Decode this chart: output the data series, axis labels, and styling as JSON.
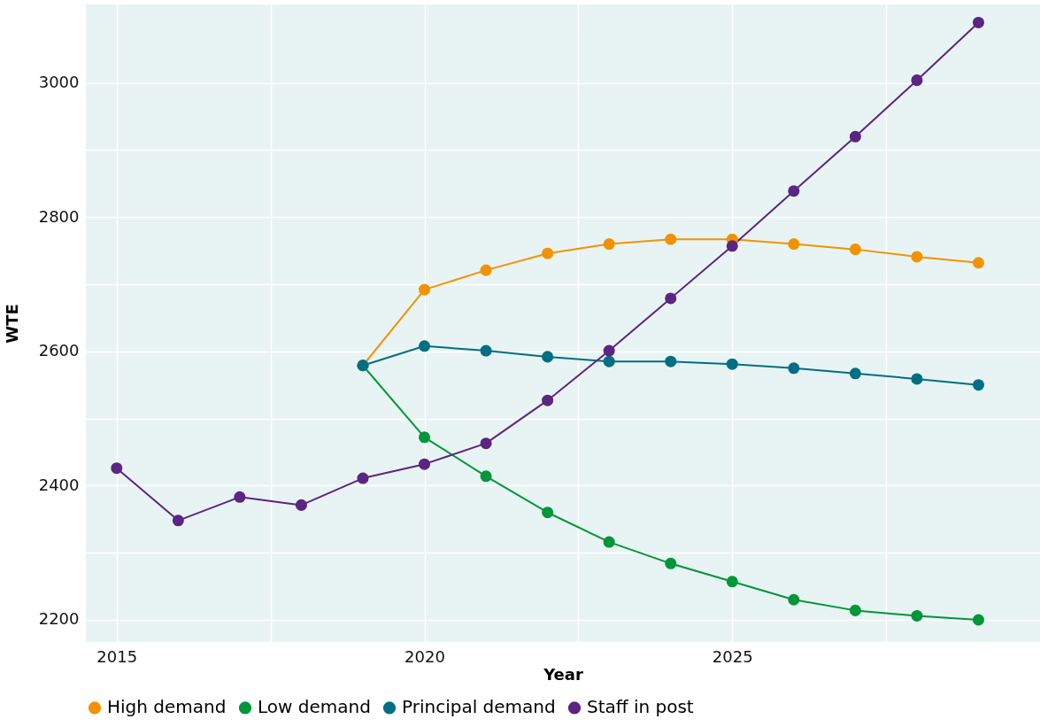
{
  "chart_data": {
    "type": "line",
    "xlabel": "Year",
    "ylabel": "WTE",
    "xlim": [
      2014.5,
      2030
    ],
    "ylim": [
      2167,
      3117
    ],
    "xticks": [
      2015,
      {
        "value": 2017.5,
        "label": null
      },
      2020,
      {
        "value": 2022.5,
        "label": null
      },
      2025,
      {
        "value": 2027.5,
        "label": null
      }
    ],
    "yticks": [
      2200,
      {
        "value": 2300,
        "label": null
      },
      2400,
      {
        "value": 2500,
        "label": null
      },
      2600,
      {
        "value": 2700,
        "label": null
      },
      2800,
      {
        "value": 2900,
        "label": null
      },
      3000
    ],
    "grid": true,
    "legend": "bottom",
    "marker": "circle",
    "line_style": "solid",
    "series": [
      {
        "name": "High demand",
        "color": "#f39200",
        "x": [
          2019,
          2020,
          2021,
          2022,
          2023,
          2024,
          2025,
          2026,
          2027,
          2028,
          2029
        ],
        "values": [
          2579,
          2692,
          2721,
          2746,
          2760,
          2767,
          2767,
          2760,
          2752,
          2741,
          2732
        ]
      },
      {
        "name": "Low demand",
        "color": "#009639",
        "x": [
          2019,
          2020,
          2021,
          2022,
          2023,
          2024,
          2025,
          2026,
          2027,
          2028,
          2029
        ],
        "values": [
          2579,
          2472,
          2414,
          2360,
          2316,
          2284,
          2257,
          2230,
          2214,
          2206,
          2200
        ]
      },
      {
        "name": "Principal demand",
        "color": "#006f83",
        "x": [
          2019,
          2020,
          2021,
          2022,
          2023,
          2024,
          2025,
          2026,
          2027,
          2028,
          2029
        ],
        "values": [
          2579,
          2608,
          2601,
          2592,
          2585,
          2585,
          2581,
          2575,
          2567,
          2559,
          2550
        ]
      },
      {
        "name": "Staff in post",
        "color": "#5c2483",
        "x": [
          2015,
          2016,
          2017,
          2018,
          2019,
          2020,
          2021,
          2022,
          2023,
          2024,
          2025,
          2026,
          2027,
          2028,
          2029
        ],
        "values": [
          2426,
          2348,
          2383,
          2371,
          2411,
          2432,
          2463,
          2527,
          2601,
          2679,
          2757,
          2839,
          2920,
          3004,
          3090
        ]
      }
    ]
  }
}
